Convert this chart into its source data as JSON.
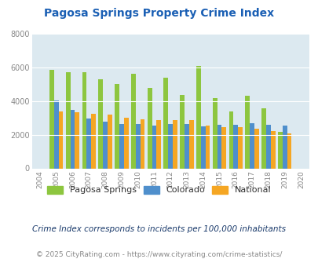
{
  "title": "Pagosa Springs Property Crime Index",
  "years": [
    2004,
    2005,
    2006,
    2007,
    2008,
    2009,
    2010,
    2011,
    2012,
    2013,
    2014,
    2015,
    2016,
    2017,
    2018,
    2019,
    2020
  ],
  "pagosa_springs": [
    null,
    5850,
    5700,
    5700,
    5280,
    5000,
    5600,
    4800,
    5400,
    4350,
    6100,
    4150,
    3400,
    4300,
    3550,
    2150,
    null
  ],
  "colorado": [
    null,
    4050,
    3450,
    2980,
    2780,
    2620,
    2620,
    2560,
    2620,
    2650,
    2480,
    2580,
    2580,
    2680,
    2600,
    2560,
    null
  ],
  "national": [
    null,
    3400,
    3330,
    3220,
    3200,
    3020,
    2920,
    2870,
    2880,
    2860,
    2540,
    2440,
    2450,
    2360,
    2220,
    2090,
    null
  ],
  "bar_color_pagosa": "#8dc63f",
  "bar_color_colorado": "#4f8fcc",
  "bar_color_national": "#f5a623",
  "background_color": "#dce9f0",
  "ylim": [
    0,
    8000
  ],
  "yticks": [
    0,
    2000,
    4000,
    6000,
    8000
  ],
  "subtitle": "Crime Index corresponds to incidents per 100,000 inhabitants",
  "footer": "© 2025 CityRating.com - https://www.cityrating.com/crime-statistics/",
  "legend_labels": [
    "Pagosa Springs",
    "Colorado",
    "National"
  ],
  "title_color": "#1a5fb4",
  "subtitle_color": "#1a3a6b",
  "footer_color": "#888888",
  "tick_color": "#888888"
}
